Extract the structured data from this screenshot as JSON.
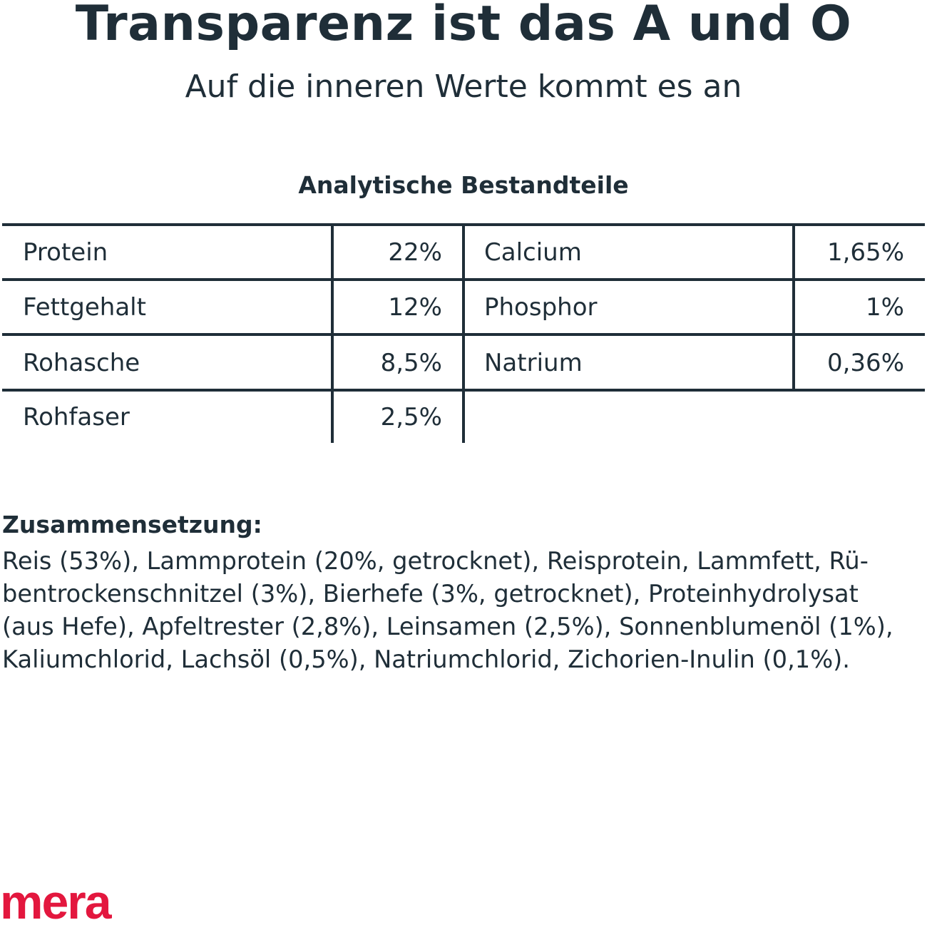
{
  "title": "Transparenz ist das A und O",
  "subtitle": "Auf die inneren Werte kommt es an",
  "table": {
    "heading": "Analytische Bestandteile",
    "left": [
      {
        "label": "Protein",
        "value": "22%"
      },
      {
        "label": "Fettgehalt",
        "value": "12%"
      },
      {
        "label": "Rohasche",
        "value": "8,5%"
      },
      {
        "label": "Rohfaser",
        "value": "2,5%"
      }
    ],
    "right": [
      {
        "label": "Calcium",
        "value": "1,65%"
      },
      {
        "label": "Phosphor",
        "value": "1%"
      },
      {
        "label": "Natrium",
        "value": "0,36%"
      }
    ]
  },
  "composition": {
    "heading": "Zusammensetzung:",
    "lines": [
      "Reis (53%), Lammprotein (20%, getrocknet), Reisprotein, Lammfett, Rü-",
      "bentrockenschnitzel (3%), Bierhefe (3%, getrocknet), Proteinhydrolysat",
      "(aus Hefe), Apfeltrester (2,8%), Leinsamen (2,5%), Sonnenblumenöl (1%),",
      "Kaliumchlorid, Lachsöl (0,5%), Natriumchlorid, Zichorien-Inulin (0,1%)."
    ]
  },
  "brand": {
    "logo": "mera",
    "color": "#e3173e"
  },
  "colors": {
    "text": "#1f2e38"
  }
}
